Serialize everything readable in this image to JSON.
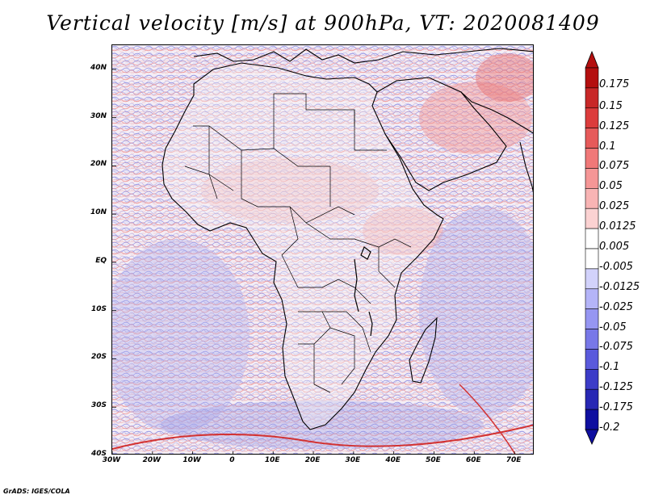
{
  "title": "Vertical velocity [m/s] at 900hPa, VT: 2020081409",
  "credit": "GrADS: IGES/COLA",
  "map": {
    "field": "vertical velocity",
    "level": "900hPa",
    "valid_time": "2020081409",
    "lon_range": [
      -30,
      75
    ],
    "lat_range": [
      -40,
      45
    ],
    "lat_labels": [
      "40N",
      "30N",
      "20N",
      "10N",
      "EQ",
      "10S",
      "20S",
      "30S",
      "40S"
    ],
    "lon_labels": [
      "30W",
      "20W",
      "10W",
      "0",
      "10E",
      "20E",
      "30E",
      "40E",
      "50E",
      "60E",
      "70E"
    ]
  },
  "colorbar": {
    "levels": [
      "0.175",
      "0.15",
      "0.125",
      "0.1",
      "0.075",
      "0.05",
      "0.025",
      "0.0125",
      "0.005",
      "-0.005",
      "-0.0125",
      "-0.025",
      "-0.05",
      "-0.075",
      "-0.1",
      "-0.125",
      "-0.175",
      "-0.2"
    ],
    "colors": [
      "#b40f0f",
      "#c82828",
      "#dc3c3c",
      "#e65a5a",
      "#f07878",
      "#f59696",
      "#f8b4b4",
      "#fbd2d2",
      "#ffffff",
      "#ffffff",
      "#d2d2fb",
      "#b4b4f8",
      "#9696f2",
      "#7878e8",
      "#5a5adc",
      "#3c3cc8",
      "#2828b4",
      "#0f0fa0"
    ]
  }
}
